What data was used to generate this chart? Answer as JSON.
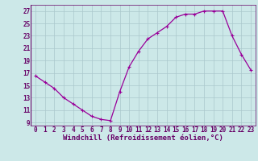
{
  "x": [
    0,
    1,
    2,
    3,
    4,
    5,
    6,
    7,
    8,
    9,
    10,
    11,
    12,
    13,
    14,
    15,
    16,
    17,
    18,
    19,
    20,
    21,
    22,
    23
  ],
  "y": [
    16.5,
    15.5,
    14.5,
    13,
    12,
    11,
    10,
    9.5,
    9.3,
    14,
    18,
    20.5,
    22.5,
    23.5,
    24.5,
    26,
    26.5,
    26.5,
    27,
    27,
    27,
    23,
    20,
    17.5
  ],
  "line_color": "#990099",
  "marker_color": "#990099",
  "bg_color": "#cce8e8",
  "grid_color": "#aac8cc",
  "xlabel": "Windchill (Refroidissement éolien,°C)",
  "ytick_labels": [
    "9",
    "11",
    "13",
    "15",
    "17",
    "19",
    "21",
    "23",
    "25",
    "27"
  ],
  "ytick_vals": [
    9,
    11,
    13,
    15,
    17,
    19,
    21,
    23,
    25,
    27
  ],
  "xtick_vals": [
    0,
    1,
    2,
    3,
    4,
    5,
    6,
    7,
    8,
    9,
    10,
    11,
    12,
    13,
    14,
    15,
    16,
    17,
    18,
    19,
    20,
    21,
    22,
    23
  ],
  "ylim": [
    8.5,
    28.0
  ],
  "xlim": [
    -0.5,
    23.5
  ],
  "font_color": "#660066",
  "tick_labelsize": 5.5,
  "xlabel_fontsize": 6.5,
  "linewidth": 0.9,
  "markersize": 2.2
}
